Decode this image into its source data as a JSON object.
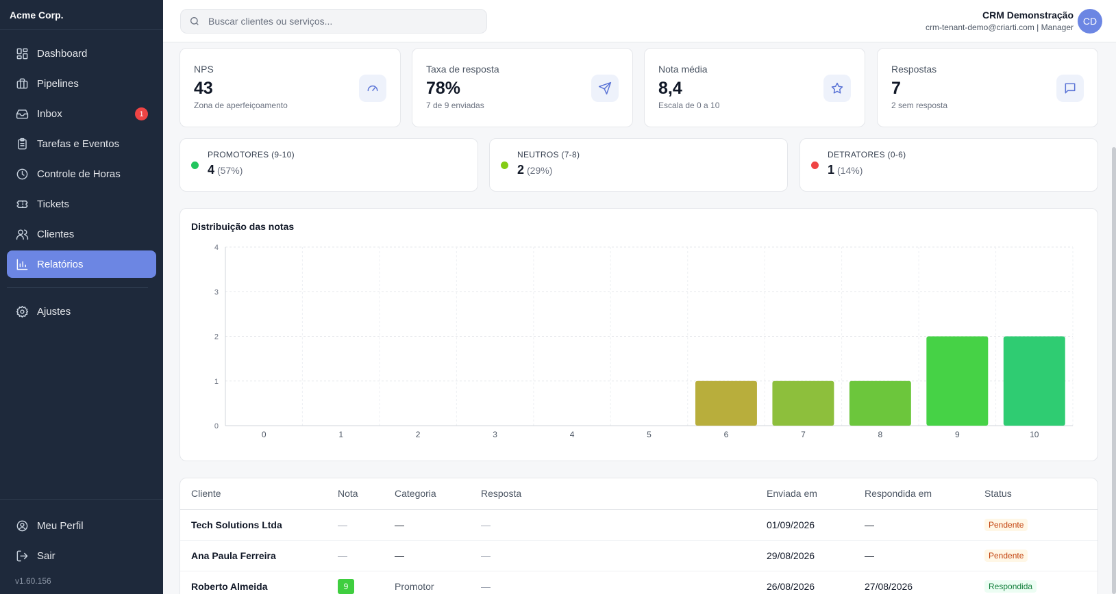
{
  "brand": "Acme Corp.",
  "sidebar": {
    "items": [
      {
        "label": "Dashboard",
        "icon": "dashboard-icon"
      },
      {
        "label": "Pipelines",
        "icon": "briefcase-icon"
      },
      {
        "label": "Inbox",
        "icon": "inbox-icon",
        "badge": "1"
      },
      {
        "label": "Tarefas e Eventos",
        "icon": "clipboard-icon"
      },
      {
        "label": "Controle de Horas",
        "icon": "clock-icon"
      },
      {
        "label": "Tickets",
        "icon": "ticket-icon"
      },
      {
        "label": "Clientes",
        "icon": "users-icon"
      },
      {
        "label": "Relatórios",
        "icon": "bar-chart-icon",
        "active": true
      },
      {
        "label": "Ajustes",
        "icon": "gear-icon"
      }
    ],
    "bottom": [
      {
        "label": "Meu Perfil",
        "icon": "user-circle-icon"
      },
      {
        "label": "Sair",
        "icon": "logout-icon"
      }
    ],
    "version": "v1.60.156"
  },
  "header": {
    "search_placeholder": "Buscar clientes ou serviços...",
    "user_name": "CRM Demonstração",
    "user_meta": "crm-tenant-demo@criarti.com | Manager",
    "avatar_initials": "CD"
  },
  "stats": [
    {
      "label": "NPS",
      "value": "43",
      "sub": "Zona de aperfeiçoamento",
      "icon": "gauge-icon"
    },
    {
      "label": "Taxa de resposta",
      "value": "78%",
      "sub": "7 de 9 enviadas",
      "icon": "send-icon"
    },
    {
      "label": "Nota média",
      "value": "8,4",
      "sub": "Escala de 0 a 10",
      "icon": "star-icon"
    },
    {
      "label": "Respostas",
      "value": "7",
      "sub": "2 sem resposta",
      "icon": "message-icon"
    }
  ],
  "categories": [
    {
      "label": "PROMOTORES (9-10)",
      "value": "4",
      "pct": "(57%)",
      "color": "#22c55e"
    },
    {
      "label": "NEUTROS (7-8)",
      "value": "2",
      "pct": "(29%)",
      "color": "#84cc16"
    },
    {
      "label": "DETRATORES (0-6)",
      "value": "1",
      "pct": "(14%)",
      "color": "#ef4444"
    }
  ],
  "chart_data": {
    "type": "bar",
    "title": "Distribuição das notas",
    "categories": [
      "0",
      "1",
      "2",
      "3",
      "4",
      "5",
      "6",
      "7",
      "8",
      "9",
      "10"
    ],
    "values": [
      0,
      0,
      0,
      0,
      0,
      0,
      1,
      1,
      1,
      2,
      2
    ],
    "colors": [
      "#b8ae3c",
      "#b8ae3c",
      "#b8ae3c",
      "#b8ae3c",
      "#b8ae3c",
      "#b8ae3c",
      "#b8ae3c",
      "#8dbf3c",
      "#6cc63c",
      "#46d246",
      "#2fcc72"
    ],
    "ylim": [
      0,
      4
    ],
    "yticks": [
      "0",
      "1",
      "2",
      "3",
      "4"
    ],
    "grid": true
  },
  "table": {
    "headers": [
      "Cliente",
      "Nota",
      "Categoria",
      "Resposta",
      "Enviada em",
      "Respondida em",
      "Status"
    ],
    "rows": [
      {
        "cliente": "Tech Solutions Ltda",
        "nota": "—",
        "categoria": "—",
        "resposta": "—",
        "enviada": "01/09/2026",
        "respondida": "—",
        "status": "Pendente"
      },
      {
        "cliente": "Ana Paula Ferreira",
        "nota": "—",
        "categoria": "—",
        "resposta": "—",
        "enviada": "29/08/2026",
        "respondida": "—",
        "status": "Pendente"
      },
      {
        "cliente": "Roberto Almeida",
        "nota": "9",
        "categoria": "Promotor",
        "resposta": "—",
        "enviada": "26/08/2026",
        "respondida": "27/08/2026",
        "status": "Respondida"
      }
    ]
  }
}
